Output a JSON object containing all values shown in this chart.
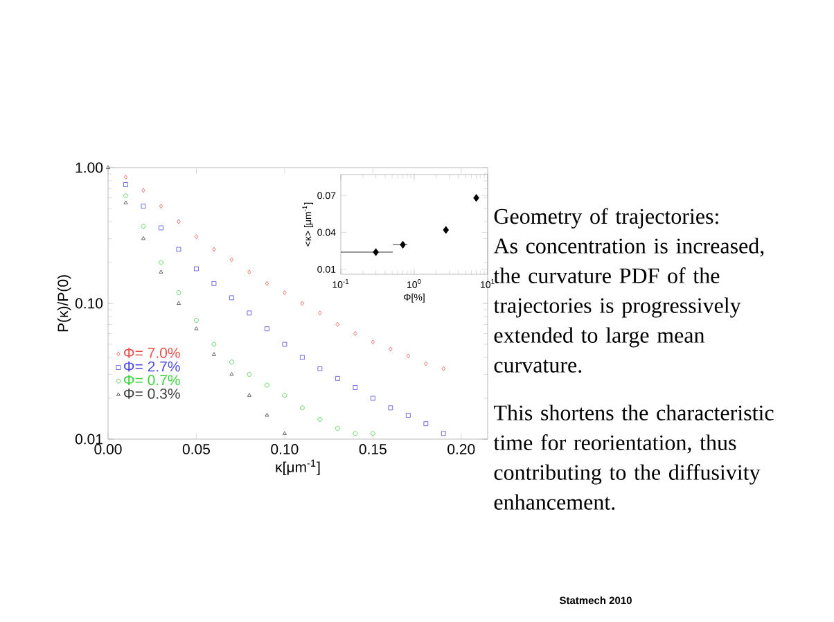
{
  "chart_data": [
    {
      "type": "scatter",
      "xlabel": "κ[μm$^{-1}$]",
      "ylabel": "P(κ)/P(0)",
      "log": "y",
      "legend": "left",
      "xlim": [
        0,
        0.215
      ],
      "ylim": [
        0.01,
        1
      ],
      "xticks": [
        {
          "value": 0,
          "label": "0.00"
        },
        {
          "value": 0.05,
          "label": "0.05"
        },
        {
          "value": 0.1,
          "label": "0.10"
        },
        {
          "value": 0.15,
          "label": "0.15"
        },
        {
          "value": 0.2,
          "label": "0.20"
        }
      ],
      "yticks": [
        {
          "value": 0.01,
          "label": "0.01"
        },
        {
          "value": 0.1,
          "label": "0.10"
        },
        {
          "value": 1,
          "label": "1.00"
        }
      ],
      "series": [
        {
          "name": "Φ= 7.0%",
          "color": "#e8504a",
          "marker": "diamond",
          "x": [
            0.01,
            0.02,
            0.03,
            0.04,
            0.05,
            0.06,
            0.07,
            0.08,
            0.09,
            0.1,
            0.11,
            0.12,
            0.13,
            0.14,
            0.15,
            0.16,
            0.17,
            0.18,
            0.19
          ],
          "values": [
            0.85,
            0.68,
            0.52,
            0.4,
            0.31,
            0.25,
            0.21,
            0.17,
            0.14,
            0.12,
            0.1,
            0.085,
            0.07,
            0.06,
            0.052,
            0.046,
            0.041,
            0.036,
            0.033
          ]
        },
        {
          "name": "Φ= 2.7%",
          "color": "#4a4ae0",
          "marker": "square",
          "x": [
            0.01,
            0.02,
            0.03,
            0.04,
            0.05,
            0.06,
            0.07,
            0.08,
            0.09,
            0.1,
            0.11,
            0.12,
            0.13,
            0.14,
            0.15,
            0.16,
            0.17,
            0.18,
            0.19
          ],
          "values": [
            0.75,
            0.52,
            0.36,
            0.25,
            0.18,
            0.14,
            0.11,
            0.085,
            0.065,
            0.05,
            0.04,
            0.033,
            0.028,
            0.024,
            0.02,
            0.017,
            0.015,
            0.013,
            0.011
          ]
        },
        {
          "name": "Φ= 0.7%",
          "color": "#3cd23c",
          "marker": "circle",
          "x": [
            0.01,
            0.02,
            0.03,
            0.04,
            0.05,
            0.06,
            0.07,
            0.08,
            0.09,
            0.1,
            0.11,
            0.12,
            0.13,
            0.14,
            0.15
          ],
          "values": [
            0.62,
            0.37,
            0.2,
            0.12,
            0.075,
            0.05,
            0.037,
            0.03,
            0.025,
            0.021,
            0.017,
            0.014,
            0.012,
            0.011,
            0.011
          ]
        },
        {
          "name": "Φ= 0.3%",
          "color": "#404040",
          "marker": "triangle",
          "x": [
            0,
            0.01,
            0.02,
            0.03,
            0.04,
            0.05,
            0.06,
            0.07,
            0.08,
            0.09,
            0.1
          ],
          "values": [
            1.0,
            0.55,
            0.3,
            0.17,
            0.1,
            0.065,
            0.042,
            0.03,
            0.021,
            0.015,
            0.011
          ]
        }
      ]
    },
    {
      "type": "scatter",
      "xlabel": "Φ[%]",
      "ylabel": "<κ> [μm$^{-1}$]",
      "log": "x",
      "xlim": [
        0.1,
        10
      ],
      "ylim": [
        0.006,
        0.087
      ],
      "xticks": [
        {
          "value": 0.1,
          "label": "10$^{-1}$"
        },
        {
          "value": 1,
          "label": "10$^{0}$"
        },
        {
          "value": 10,
          "label": "10$^{1}$"
        }
      ],
      "yticks": [
        {
          "value": 0.01,
          "label": "0.01"
        },
        {
          "value": 0.04,
          "label": "0.04"
        },
        {
          "value": 0.07,
          "label": "0.07"
        }
      ],
      "series": [
        {
          "color": "#000000",
          "marker": "diamond",
          "x": [
            0.3,
            0.7,
            2.7,
            7.0
          ],
          "values": [
            0.024,
            0.03,
            0.042,
            0.068
          ],
          "xerrors": [
            [
              0.1,
              0.51
            ],
            [
              0.51,
              0.81
            ],
            null,
            null
          ]
        }
      ]
    },
    {
      "type": "other",
      "annotations": [
        "Geometry of trajectories:",
        "As concentration is increased, the curvature PDF of the trajectories is progressively extended to large mean curvature.",
        "This shortens the characteristic time for reorientation, thus contributing to the diffusivity enhancement.",
        "Statmech 2010"
      ]
    }
  ]
}
